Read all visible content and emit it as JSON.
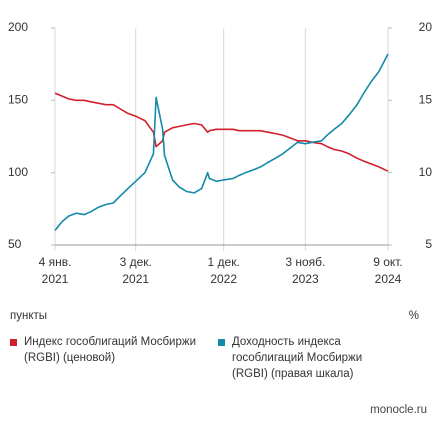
{
  "chart_data": {
    "type": "line",
    "ylabel": "пункты",
    "y2label": "%",
    "source": "monocle.ru",
    "x": [
      "2021-01-04",
      "2021-02-01",
      "2021-03-01",
      "2021-04-01",
      "2021-05-04",
      "2021-06-01",
      "2021-07-01",
      "2021-08-02",
      "2021-09-01",
      "2021-10-01",
      "2021-11-01",
      "2021-12-03",
      "2022-01-10",
      "2022-02-14",
      "2022-02-25",
      "2022-03-24",
      "2022-04-01",
      "2022-05-04",
      "2022-06-01",
      "2022-07-01",
      "2022-08-01",
      "2022-09-01",
      "2022-09-26",
      "2022-10-03",
      "2022-11-01",
      "2022-12-01",
      "2023-01-09",
      "2023-02-01",
      "2023-03-01",
      "2023-04-03",
      "2023-05-02",
      "2023-06-01",
      "2023-07-03",
      "2023-08-01",
      "2023-09-01",
      "2023-10-02",
      "2023-11-03",
      "2023-12-01",
      "2024-01-09",
      "2024-02-01",
      "2024-03-01",
      "2024-04-01",
      "2024-05-02",
      "2024-06-03",
      "2024-07-01",
      "2024-08-01",
      "2024-09-02",
      "2024-10-09"
    ],
    "series": [
      {
        "name": "Индекс гособлигаций Мосбиржи (RGBI) (ценовой)",
        "color": "#d0202e",
        "axis": "y",
        "values": [
          155,
          153,
          151,
          150,
          150,
          149,
          148,
          147,
          147,
          144,
          141,
          139,
          136,
          128,
          118,
          122,
          128,
          131,
          132,
          133,
          134,
          133,
          128,
          129,
          130,
          130,
          130,
          129,
          129,
          129,
          129,
          128,
          127,
          126,
          124,
          122,
          122,
          121,
          120,
          118,
          116,
          115,
          113,
          110,
          108,
          106,
          104,
          101
        ]
      },
      {
        "name": "Доходность индекса гособлигаций Мосбиржи (RGBI) (правая шкала)",
        "color": "#128aa8",
        "axis": "y2",
        "values": [
          6.0,
          6.6,
          7.0,
          7.2,
          7.1,
          7.3,
          7.6,
          7.8,
          7.9,
          8.4,
          8.9,
          9.4,
          10.0,
          11.3,
          15.2,
          13.0,
          11.2,
          9.5,
          9.0,
          8.7,
          8.6,
          8.9,
          10.0,
          9.6,
          9.4,
          9.5,
          9.6,
          9.8,
          10.0,
          10.2,
          10.4,
          10.7,
          11.0,
          11.3,
          11.7,
          12.1,
          12.0,
          12.1,
          12.2,
          12.6,
          13.0,
          13.4,
          14.0,
          14.7,
          15.5,
          16.3,
          17.0,
          18.2
        ]
      }
    ],
    "xlim": [
      "2021-01-04",
      "2024-10-09"
    ],
    "xticks": [
      {
        "value": "2021-01-04",
        "label": [
          "4 янв.",
          "2021"
        ]
      },
      {
        "value": "2021-12-03",
        "label": [
          "3 дек.",
          "2021"
        ]
      },
      {
        "value": "2022-12-01",
        "label": [
          "1 дек.",
          "2022"
        ]
      },
      {
        "value": "2023-11-03",
        "label": [
          "3 нояб.",
          "2023"
        ]
      },
      {
        "value": "2024-10-09",
        "label": [
          "9 окт.",
          "2024"
        ]
      }
    ],
    "ylim": [
      50,
      200
    ],
    "yticks": [
      50,
      100,
      150,
      200
    ],
    "y2lim": [
      5,
      20
    ],
    "y2ticks": [
      5,
      10,
      15,
      20
    ],
    "grid": true
  }
}
